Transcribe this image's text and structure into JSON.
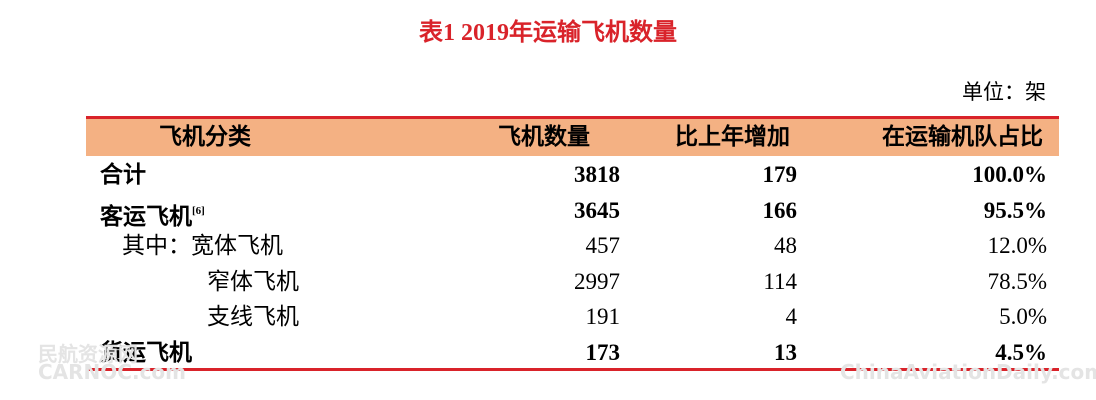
{
  "header": {
    "title": "表1 2019年运输飞机数量",
    "unit": "单位：架"
  },
  "table": {
    "columns": [
      "飞机分类",
      "飞机数量",
      "比上年增加",
      "在运输机队占比"
    ],
    "rows": [
      {
        "label": "合计",
        "cells": [
          "3818",
          "179",
          "100.0%"
        ]
      },
      {
        "label": "客运飞机",
        "note": "[6]",
        "cells": [
          "3645",
          "166",
          "95.5%"
        ]
      },
      {
        "label": "其中：宽体飞机",
        "cells": [
          "457",
          "48",
          "12.0%"
        ]
      },
      {
        "label": "窄体飞机",
        "cells": [
          "2997",
          "114",
          "78.5%"
        ]
      },
      {
        "label": "支线飞机",
        "cells": [
          "191",
          "4",
          "5.0%"
        ]
      },
      {
        "label": "货运飞机",
        "cells": [
          "173",
          "13",
          "4.5%"
        ]
      }
    ]
  },
  "watermarks": [
    "民航资源网",
    "CARNOC.com",
    "ChinaAviationDaily.com"
  ]
}
